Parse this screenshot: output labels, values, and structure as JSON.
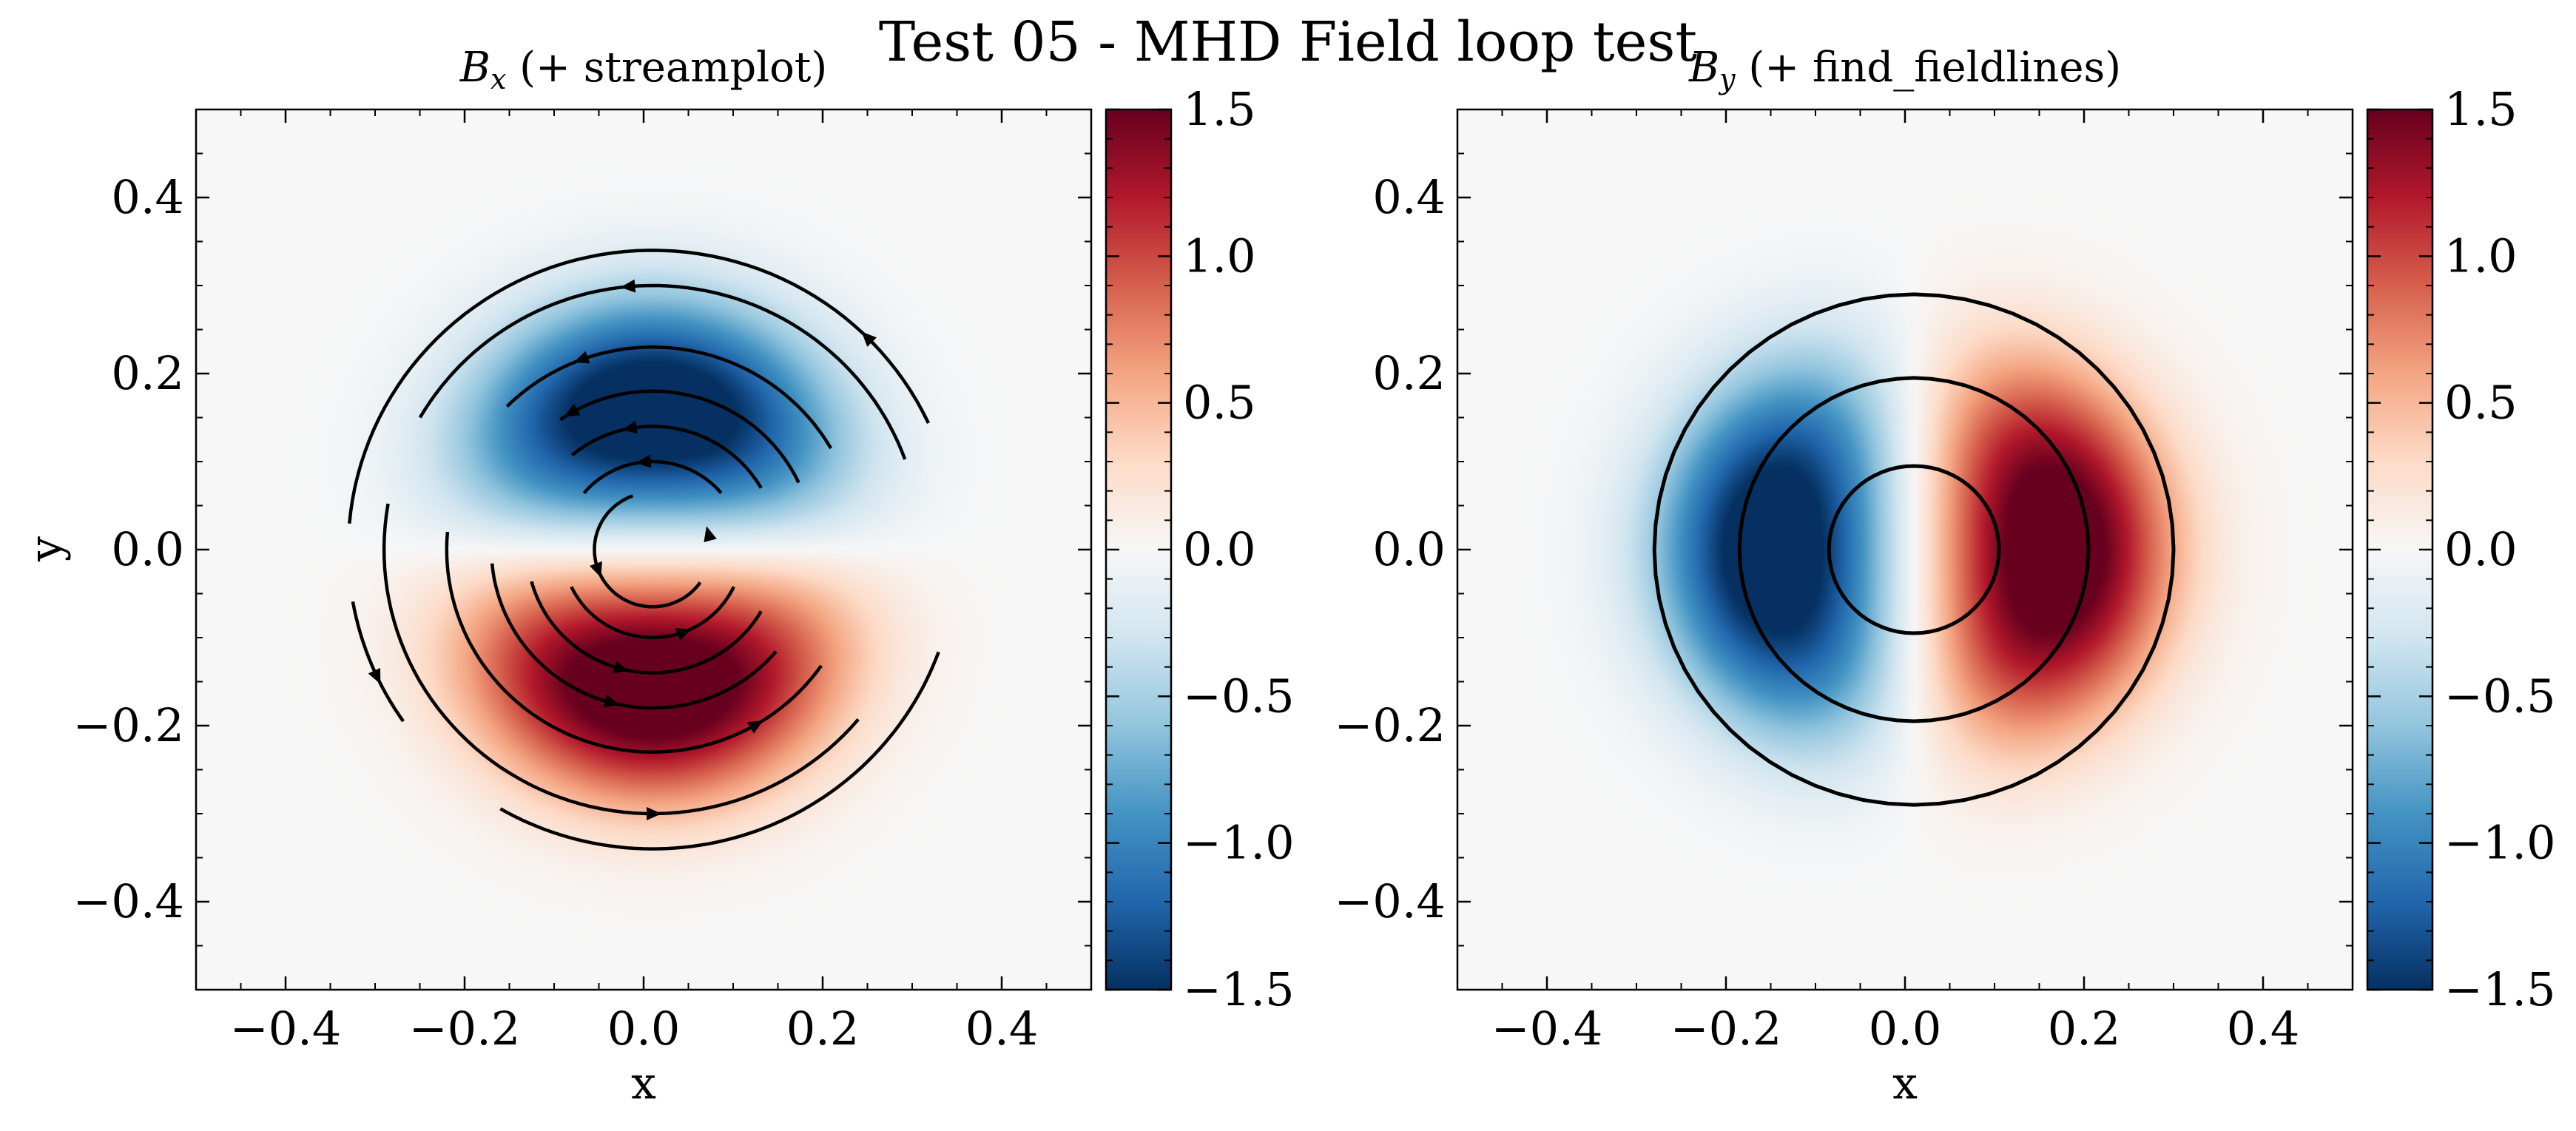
{
  "figure": {
    "suptitle": "Test 05 - MHD Field loop test"
  },
  "chart_data": [
    {
      "type": "heatmap",
      "title_main": "B",
      "title_sub": "x",
      "title_rest": " (+ streamplot)",
      "xlabel": "x",
      "ylabel": "y",
      "xlim": [
        -0.5,
        0.5
      ],
      "ylim": [
        -0.5,
        0.5
      ],
      "xticks": [
        -0.4,
        -0.2,
        0.0,
        0.2,
        0.4
      ],
      "yticks": [
        -0.4,
        -0.2,
        0.0,
        0.2,
        0.4
      ],
      "xtick_labels": [
        "−0.4",
        "−0.2",
        "0.0",
        "0.2",
        "0.4"
      ],
      "ytick_labels": [
        "−0.4",
        "−0.2",
        "0.0",
        "0.2",
        "0.4"
      ],
      "field": {
        "component": "Bx",
        "amplitude": 1.5,
        "loop_radius": 0.3,
        "center": [
          0.01,
          0.0
        ]
      },
      "colorbar": {
        "colormap": "RdBu_r",
        "range": [
          -1.5,
          1.5
        ],
        "ticks": [
          1.5,
          1.0,
          0.5,
          0.0,
          -0.5,
          -1.0,
          -1.5
        ],
        "tick_labels": [
          "1.5",
          "1.0",
          "0.5",
          "0.0",
          "−0.5",
          "−1.0",
          "−1.5"
        ]
      },
      "overlay": {
        "kind": "streamlines",
        "direction": "counter-clockwise",
        "radii": [
          0.065,
          0.1,
          0.14,
          0.18,
          0.23,
          0.3,
          0.34
        ]
      },
      "grid": false
    },
    {
      "type": "heatmap",
      "title_main": "B",
      "title_sub": "y",
      "title_rest": " (+ find_fieldlines)",
      "xlabel": "x",
      "ylabel": "",
      "xlim": [
        -0.5,
        0.5
      ],
      "ylim": [
        -0.5,
        0.5
      ],
      "xticks": [
        -0.4,
        -0.2,
        0.0,
        0.2,
        0.4
      ],
      "yticks": [
        -0.4,
        -0.2,
        0.0,
        0.2,
        0.4
      ],
      "xtick_labels": [
        "−0.4",
        "−0.2",
        "0.0",
        "0.2",
        "0.4"
      ],
      "ytick_labels": [
        "−0.4",
        "−0.2",
        "0.0",
        "0.2",
        "0.4"
      ],
      "field": {
        "component": "By",
        "amplitude": 1.5,
        "loop_radius": 0.3,
        "center": [
          0.01,
          0.0
        ]
      },
      "colorbar": {
        "colormap": "RdBu_r",
        "range": [
          -1.5,
          1.5
        ],
        "ticks": [
          1.5,
          1.0,
          0.5,
          0.0,
          -0.5,
          -1.0,
          -1.5
        ],
        "tick_labels": [
          "1.5",
          "1.0",
          "0.5",
          "0.0",
          "−0.5",
          "−1.0",
          "−1.5"
        ]
      },
      "overlay": {
        "kind": "fieldlines",
        "radii": [
          0.095,
          0.195,
          0.29
        ]
      },
      "grid": false
    }
  ]
}
